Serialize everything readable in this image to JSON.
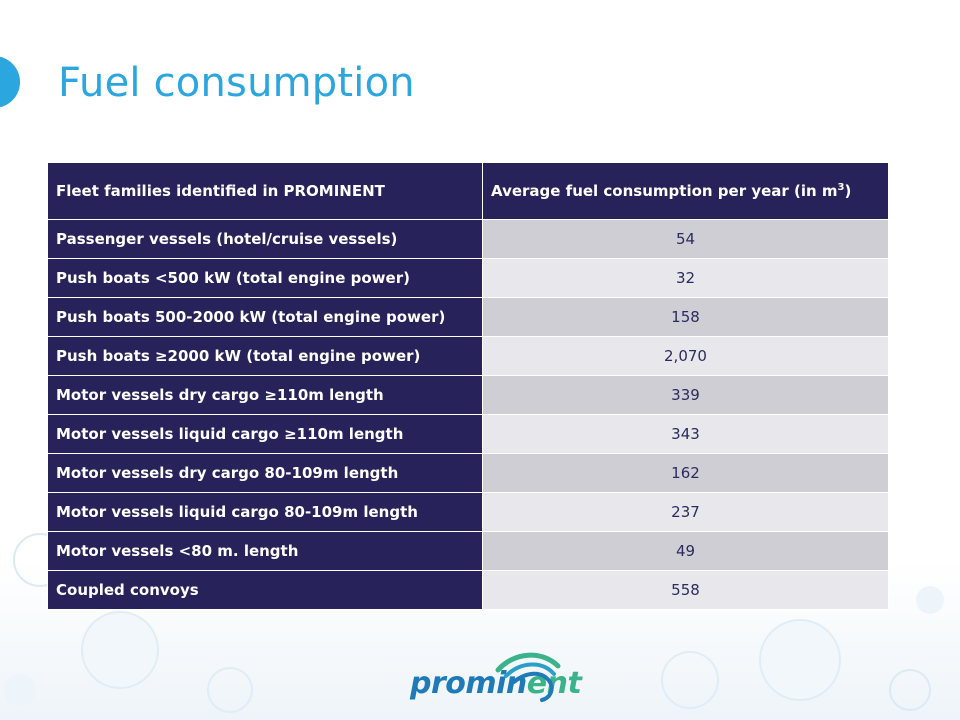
{
  "title": "Fuel consumption",
  "table": {
    "header_col1": "Fleet families identified in PROMINENT",
    "header_col2_prefix": "Average fuel consumption  per year (in m",
    "header_col2_sup": "3",
    "header_col2_suffix": ")",
    "rows": [
      {
        "label": "Passenger vessels (hotel/cruise vessels)",
        "value": "54"
      },
      {
        "label": "Push boats <500 kW (total engine power)",
        "value": "32"
      },
      {
        "label": "Push boats 500-2000 kW (total engine power)",
        "value": "158"
      },
      {
        "label": "Push boats ≥2000 kW (total engine power)",
        "value": "2,070"
      },
      {
        "label": "Motor vessels dry cargo ≥110m length",
        "value": "339"
      },
      {
        "label": "Motor vessels liquid cargo ≥110m length",
        "value": "343"
      },
      {
        "label": "Motor vessels dry cargo 80-109m length",
        "value": "162"
      },
      {
        "label": "Motor vessels liquid cargo 80-109m length",
        "value": "237"
      },
      {
        "label": "Motor vessels <80 m. length",
        "value": "49"
      },
      {
        "label": "Coupled convoys",
        "value": "558"
      }
    ]
  },
  "logo": {
    "text_a": "promin",
    "text_b": "ent",
    "icon": "wave-swirl-icon"
  },
  "colors": {
    "title": "#2ba6de",
    "header_bg": "#27235a",
    "row_odd": "#cfced5",
    "row_even": "#e8e8ec",
    "logo_blue": "#1f7ab8",
    "logo_green": "#3bb38a"
  }
}
